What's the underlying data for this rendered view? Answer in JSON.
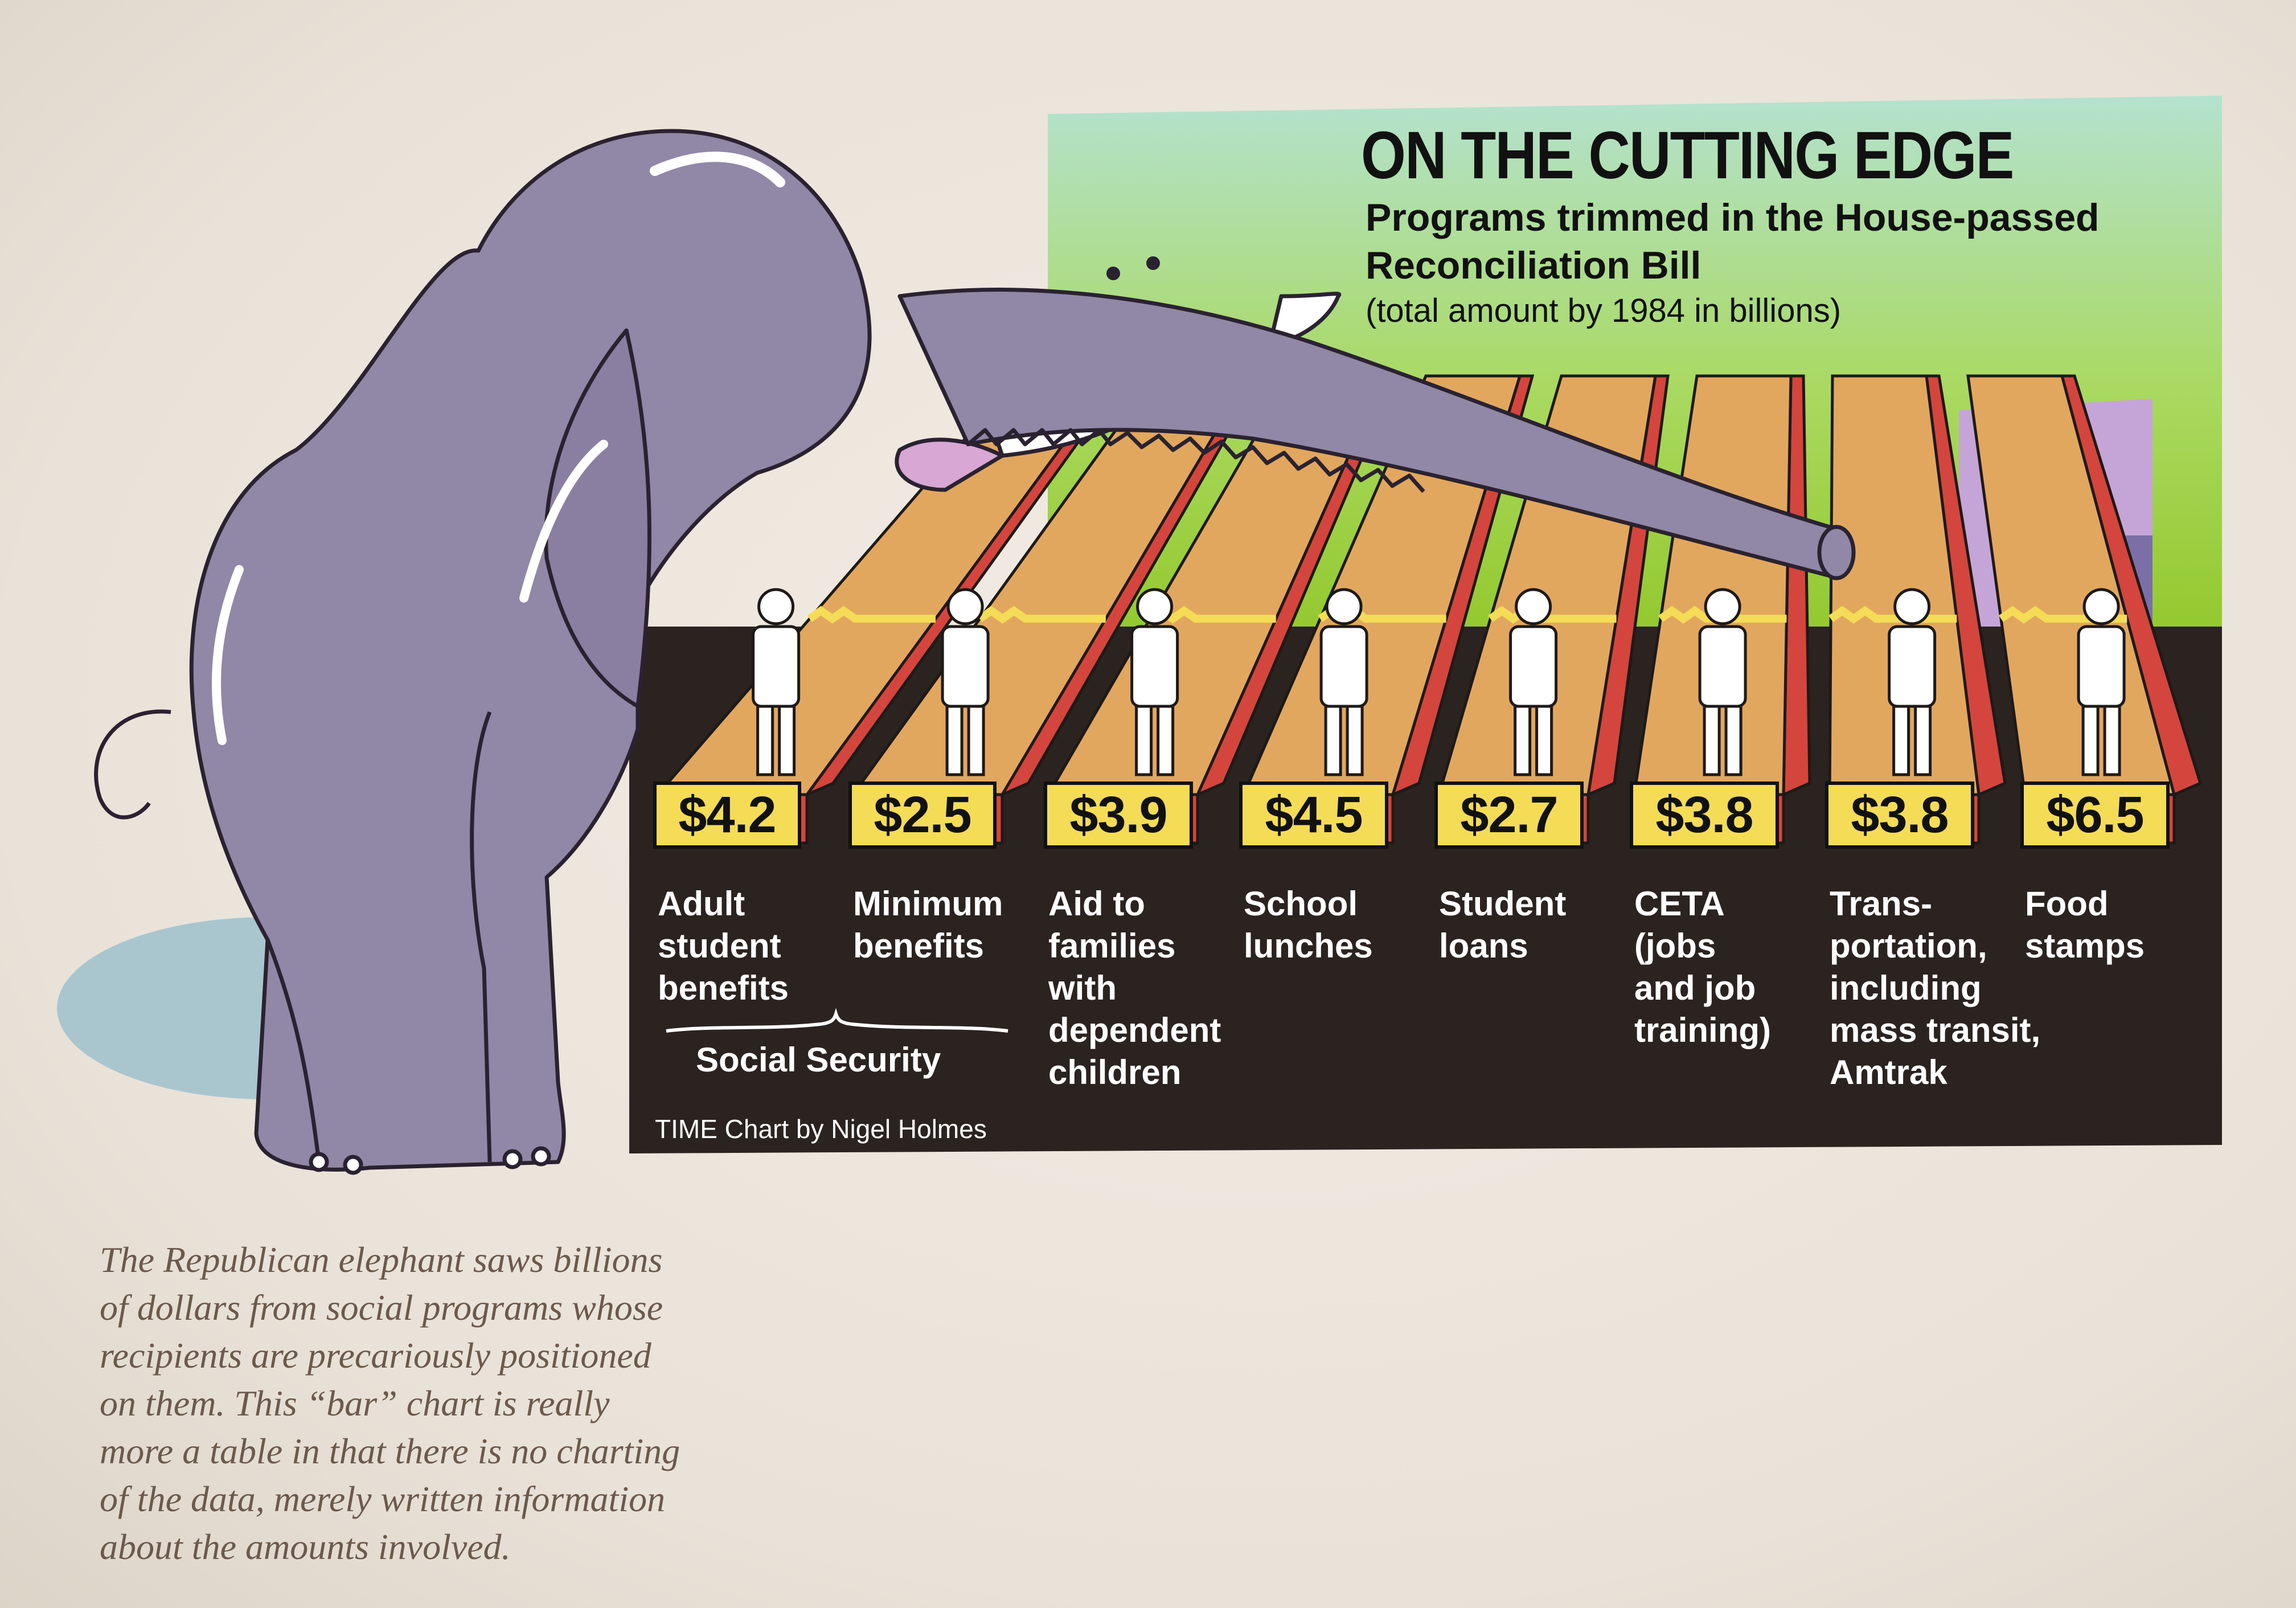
{
  "chart_data": {
    "type": "bar",
    "title": "ON THE CUTTING EDGE",
    "subtitle": "Programs trimmed in the House-passed Reconciliation Bill",
    "unit_note": "(total amount by 1984 in billions)",
    "categories": [
      "Adult student benefits",
      "Minimum benefits",
      "Aid to families with dependent children",
      "School lunches",
      "Student loans",
      "CETA (jobs and job training)",
      "Trans-portation, including mass transit, Amtrak",
      "Food stamps"
    ],
    "category_labels": [
      "Adult\nstudent\nbenefits",
      "Minimum\nbenefits",
      "Aid to\nfamilies\nwith\ndependent\nchildren",
      "School\nlunches",
      "Student\nloans",
      "CETA\n(jobs\nand job\ntraining)",
      "Trans-\nportation,\nincluding\nmass transit,\nAmtrak",
      "Food\nstamps"
    ],
    "values": [
      4.2,
      2.5,
      3.9,
      4.5,
      2.7,
      3.8,
      3.8,
      6.5
    ],
    "value_labels": [
      "$4.2",
      "$2.5",
      "$3.9",
      "$4.5",
      "$2.7",
      "$3.8",
      "$3.8",
      "$6.5"
    ],
    "group_label": "Social Security",
    "credit": "TIME Chart by Nigel Holmes"
  },
  "caption": "The Republican elephant saws billions\nof dollars from social programs whose\nrecipients are precariously positioned\non them. This “bar” chart is really\nmore a table in that there is no charting\nof the data, merely written information\nabout the amounts involved.",
  "colors": {
    "bar_top": "#e2a75e",
    "bar_side": "#d4453d",
    "value_box": "#f4dc57",
    "elephant": "#9187a6",
    "panel_dark": "#2a231f",
    "sky_top": "#a9dfc7",
    "sky_bottom": "#9fd232"
  }
}
